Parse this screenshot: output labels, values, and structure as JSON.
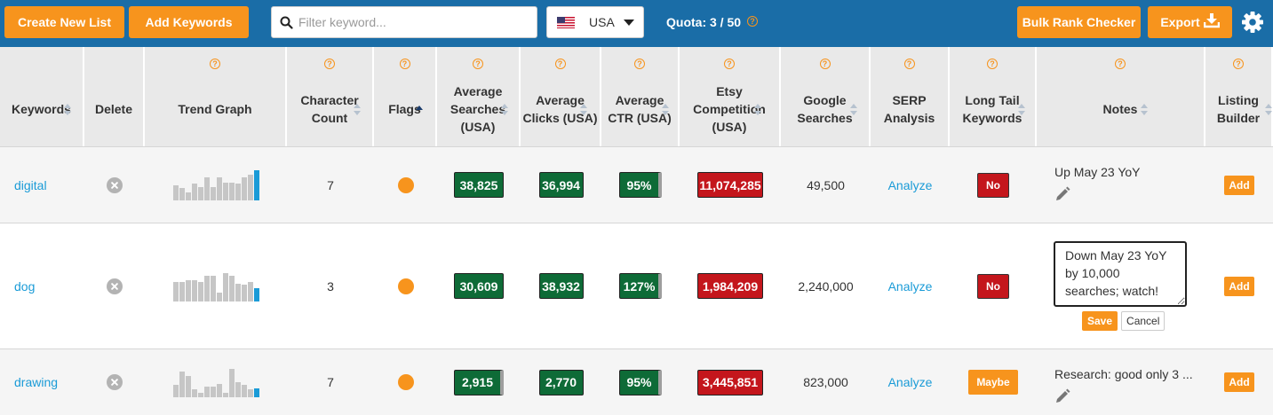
{
  "toolbar": {
    "create_list_label": "Create New List",
    "add_keywords_label": "Add Keywords",
    "filter_placeholder": "Filter keyword...",
    "country": "USA",
    "quota_text": "Quota: 3 / 50",
    "bulk_rank_label": "Bulk Rank Checker",
    "export_label": "Export"
  },
  "help_glyph": "?",
  "columns": [
    {
      "label": "Keywords",
      "help": false,
      "sort": "both"
    },
    {
      "label": "Delete",
      "help": false,
      "sort": "none"
    },
    {
      "label": "Trend Graph",
      "help": true,
      "sort": "none"
    },
    {
      "label": "Character Count",
      "help": true,
      "sort": "both"
    },
    {
      "label": "Flags",
      "help": true,
      "sort": "asc"
    },
    {
      "label": "Average Searches (USA)",
      "help": true,
      "sort": "both"
    },
    {
      "label": "Average Clicks (USA)",
      "help": true,
      "sort": "both"
    },
    {
      "label": "Average CTR (USA)",
      "help": true,
      "sort": "both"
    },
    {
      "label": "Etsy Competition (USA)",
      "help": true,
      "sort": "both"
    },
    {
      "label": "Google Searches",
      "help": true,
      "sort": "both"
    },
    {
      "label": "SERP Analysis",
      "help": true,
      "sort": "none"
    },
    {
      "label": "Long Tail Keywords",
      "help": true,
      "sort": "both"
    },
    {
      "label": "Notes",
      "help": true,
      "sort": "both"
    },
    {
      "label": "Listing Builder",
      "help": true,
      "sort": "both"
    }
  ],
  "rows": [
    {
      "keyword": "digital",
      "trend": [
        0.5,
        0.4,
        0.25,
        0.55,
        0.45,
        0.75,
        0.45,
        0.75,
        0.6,
        0.6,
        0.55,
        0.75,
        0.85,
        1.0
      ],
      "char_count": "7",
      "avg_searches": "38,825",
      "avg_clicks": "36,994",
      "avg_ctr": "95%",
      "etsy_competition": "11,074,285",
      "google_searches": "49,500",
      "serp": "Analyze",
      "long_tail": "No",
      "long_tail_style": "no",
      "notes": "Up May 23 YoY",
      "listing": "Add"
    },
    {
      "keyword": "dog",
      "trend": [
        0.65,
        0.65,
        0.7,
        0.7,
        0.65,
        0.85,
        0.85,
        0.3,
        0.95,
        0.85,
        0.6,
        0.55,
        0.65,
        0.45
      ],
      "char_count": "3",
      "avg_searches": "30,609",
      "avg_clicks": "38,932",
      "avg_ctr": "127%",
      "etsy_competition": "1,984,209",
      "google_searches": "2,240,000",
      "serp": "Analyze",
      "long_tail": "No",
      "long_tail_style": "no",
      "notes_editing": "Down May 23 YoY by 10,000 searches; watch!",
      "save_label": "Save",
      "cancel_label": "Cancel",
      "listing": "Add"
    },
    {
      "keyword": "drawing",
      "trend": [
        0.4,
        0.85,
        0.7,
        0.25,
        0.15,
        0.35,
        0.35,
        0.45,
        0.15,
        0.95,
        0.5,
        0.4,
        0.25,
        0.3
      ],
      "char_count": "7",
      "avg_searches": "2,915",
      "avg_clicks": "2,770",
      "avg_ctr": "95%",
      "etsy_competition": "3,445,851",
      "google_searches": "823,000",
      "serp": "Analyze",
      "long_tail": "Maybe",
      "long_tail_style": "maybe",
      "notes": "Research: good only 3 ...",
      "listing": "Add"
    }
  ],
  "colors": {
    "topbar": "#1a6da7",
    "accent_orange": "#f7941d",
    "good_green": "#0e6b37",
    "bad_red": "#c4161c",
    "link_blue": "#1a9bd7"
  }
}
